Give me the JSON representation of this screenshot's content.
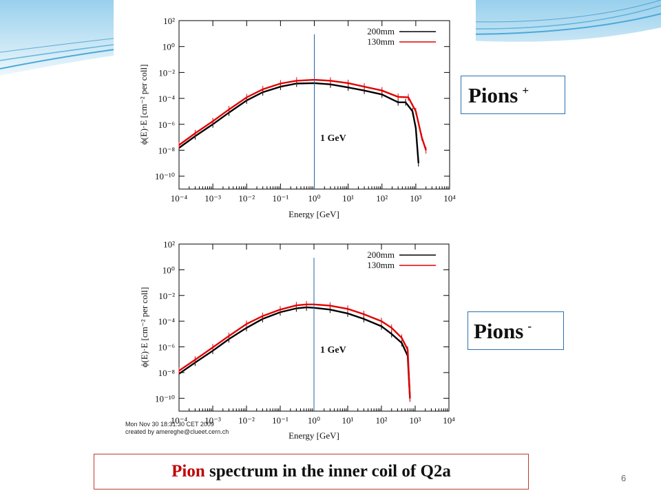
{
  "slide": {
    "caption_highlight": "Pion",
    "caption_rest": " spectrum in the inner coil of Q2a",
    "page_number": "6",
    "colors": {
      "accent_red": "#c00000",
      "background_wave": "#4aa8d8"
    }
  },
  "labels": {
    "pions_plus_text": "Pions",
    "pions_plus_sign": "+",
    "pions_minus_text": "Pions",
    "pions_minus_sign": "-"
  },
  "chart_data": [
    {
      "type": "line",
      "id": "pions-plus",
      "xlabel": "Energy [GeV]",
      "ylabel": "ϕ(E)·E [cm⁻² per coll]",
      "xscale": "log",
      "yscale": "log",
      "xlim": [
        0.0001,
        10000
      ],
      "ylim": [
        1e-11,
        100
      ],
      "x_ticks": [
        "10⁻⁴",
        "10⁻³",
        "10⁻²",
        "10⁻¹",
        "10⁰",
        "10¹",
        "10²",
        "10³",
        "10⁴"
      ],
      "y_ticks": [
        "10⁻¹⁰",
        "10⁻⁸",
        "10⁻⁶",
        "10⁻⁴",
        "10⁻²",
        "10⁰",
        "10²"
      ],
      "legend_position": "top-right",
      "annotation": {
        "text": "1 GeV",
        "x": 1
      },
      "series": [
        {
          "name": "200mm",
          "color": "#000000",
          "x": [
            0.0001,
            0.0003,
            0.001,
            0.003,
            0.01,
            0.03,
            0.1,
            0.3,
            1,
            3,
            10,
            30,
            100,
            300,
            500,
            800,
            1000,
            1200
          ],
          "y": [
            1.5e-08,
            1.2e-07,
            1e-06,
            8e-06,
            7e-05,
            0.0003,
            0.0008,
            0.0014,
            0.0015,
            0.0012,
            0.0007,
            0.0004,
            0.0002,
            5e-05,
            5e-05,
            1e-05,
            5e-07,
            1e-09
          ]
        },
        {
          "name": "130mm",
          "color": "#e00000",
          "x": [
            0.0001,
            0.0003,
            0.001,
            0.003,
            0.01,
            0.03,
            0.1,
            0.3,
            1,
            3,
            10,
            30,
            100,
            300,
            600,
            1000,
            1500,
            2000
          ],
          "y": [
            2.5e-08,
            2e-07,
            1.7e-06,
            1.4e-05,
            0.00012,
            0.0005,
            0.0014,
            0.0023,
            0.0027,
            0.0023,
            0.0015,
            0.0008,
            0.0004,
            0.00013,
            0.00012,
            1e-05,
            1e-07,
            1e-08
          ]
        }
      ]
    },
    {
      "type": "line",
      "id": "pions-minus",
      "xlabel": "Energy [GeV]",
      "ylabel": "ϕ(E)·E [cm⁻² per coll]",
      "xscale": "log",
      "yscale": "log",
      "xlim": [
        0.0001,
        10000
      ],
      "ylim": [
        1e-11,
        100
      ],
      "x_ticks": [
        "10⁻⁴",
        "10⁻³",
        "10⁻²",
        "10⁻¹",
        "10⁰",
        "10¹",
        "10²",
        "10³",
        "10⁴"
      ],
      "y_ticks": [
        "10⁻¹⁰",
        "10⁻⁸",
        "10⁻⁶",
        "10⁻⁴",
        "10⁻²",
        "10⁰",
        "10²"
      ],
      "legend_position": "top-right",
      "annotation": {
        "text": "1 GeV",
        "x": 1
      },
      "stamp": [
        "Mon Nov 30 18:31:30 CET 2009",
        "created by amereghe@clueet.cern.ch"
      ],
      "series": [
        {
          "name": "200mm",
          "color": "#000000",
          "x": [
            0.0001,
            0.0003,
            0.001,
            0.003,
            0.01,
            0.03,
            0.1,
            0.3,
            0.6,
            1,
            3,
            10,
            30,
            100,
            200,
            400,
            600,
            700
          ],
          "y": [
            8e-09,
            6e-08,
            5e-07,
            4e-06,
            3e-05,
            0.00015,
            0.0005,
            0.001,
            0.0012,
            0.0011,
            0.0008,
            0.0004,
            0.00015,
            4e-05,
            1e-05,
            2e-06,
            2e-07,
            1e-10
          ]
        },
        {
          "name": "130mm",
          "color": "#e00000",
          "x": [
            0.0001,
            0.0003,
            0.001,
            0.003,
            0.01,
            0.03,
            0.1,
            0.3,
            0.6,
            1,
            3,
            10,
            30,
            100,
            200,
            400,
            600,
            700
          ],
          "y": [
            1.4e-08,
            1e-07,
            9e-07,
            7e-06,
            6e-05,
            0.00025,
            0.0008,
            0.0017,
            0.002,
            0.002,
            0.0016,
            0.0009,
            0.00035,
            0.0001,
            3e-05,
            5e-06,
            6e-07,
            1e-10
          ]
        }
      ]
    }
  ]
}
